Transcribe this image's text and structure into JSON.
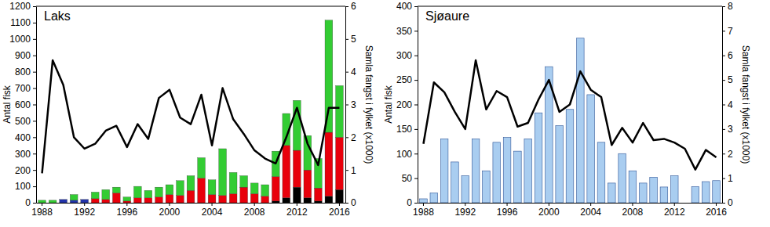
{
  "chart_data": [
    {
      "type": "bar",
      "title": "Laks",
      "y_label": "Antal fisk",
      "y2_label": "Samla fangst i fylket (x1000)",
      "stacked": true,
      "categories": [
        1988,
        null,
        null,
        null,
        1992,
        null,
        null,
        null,
        1996,
        null,
        null,
        null,
        2000,
        null,
        null,
        null,
        2004,
        null,
        null,
        null,
        2008,
        null,
        null,
        null,
        2012,
        null,
        null,
        null,
        2016
      ],
      "series": [
        {
          "type": "bar",
          "color": "#000000",
          "values": [
            null,
            null,
            null,
            null,
            null,
            null,
            null,
            null,
            null,
            null,
            null,
            null,
            null,
            null,
            null,
            null,
            null,
            null,
            null,
            null,
            null,
            null,
            10,
            30,
            95,
            30,
            10,
            40,
            80
          ]
        },
        {
          "type": "bar",
          "color": "#2233aa",
          "values": [
            null,
            null,
            20,
            15,
            20,
            null,
            null,
            null,
            null,
            null,
            null,
            null,
            null,
            null,
            null,
            null,
            null,
            null,
            null,
            null,
            null,
            null,
            null,
            null,
            null,
            null,
            null,
            null,
            null
          ]
        },
        {
          "type": "bar",
          "color": "#e8000b",
          "values": [
            null,
            null,
            null,
            null,
            null,
            25,
            20,
            60,
            10,
            30,
            30,
            35,
            50,
            45,
            75,
            150,
            50,
            45,
            55,
            95,
            55,
            40,
            150,
            320,
            225,
            170,
            80,
            390,
            320
          ]
        },
        {
          "type": "bar",
          "color": "#33cc33",
          "values": [
            15,
            15,
            null,
            35,
            null,
            40,
            60,
            35,
            25,
            70,
            45,
            60,
            60,
            90,
            90,
            125,
            90,
            285,
            130,
            70,
            65,
            70,
            155,
            195,
            305,
            210,
            180,
            685,
            315
          ]
        },
        {
          "type": "line",
          "axis": "y2",
          "color": "#000000",
          "values": [
            0.9,
            4.35,
            3.6,
            2.0,
            1.65,
            1.8,
            2.2,
            2.35,
            1.7,
            2.4,
            1.95,
            3.2,
            3.45,
            2.6,
            2.4,
            3.3,
            1.75,
            3.5,
            2.55,
            2.1,
            1.6,
            1.35,
            1.2,
            2.0,
            2.9,
            1.8,
            1.15,
            2.9,
            2.9
          ]
        }
      ],
      "ylim": [
        0,
        1200
      ],
      "yticks": [
        0,
        100,
        200,
        300,
        400,
        500,
        600,
        700,
        800,
        900,
        1000,
        1100,
        1200
      ],
      "y2lim": [
        0,
        6
      ],
      "y2ticks": [
        0,
        1,
        2,
        3,
        4,
        5,
        6
      ]
    },
    {
      "type": "bar",
      "title": "Sjøaure",
      "y_label": "Antal fisk",
      "y2_label": "Samla fangst i fylket (x1000)",
      "categories": [
        1988,
        null,
        null,
        null,
        1992,
        null,
        null,
        null,
        1996,
        null,
        null,
        null,
        2000,
        null,
        null,
        null,
        2004,
        null,
        null,
        null,
        2008,
        null,
        null,
        null,
        2012,
        null,
        null,
        null,
        2016
      ],
      "series": [
        {
          "type": "bar",
          "color": "#a9cdf0",
          "values": [
            8,
            20,
            130,
            83,
            55,
            130,
            65,
            123,
            133,
            105,
            130,
            183,
            277,
            157,
            190,
            335,
            220,
            123,
            40,
            100,
            65,
            40,
            52,
            32,
            55,
            null,
            33,
            43,
            45
          ]
        },
        {
          "type": "line",
          "axis": "y2",
          "color": "#000000",
          "values": [
            2.4,
            4.9,
            4.5,
            3.7,
            3.0,
            5.8,
            3.8,
            4.55,
            4.3,
            3.1,
            3.25,
            4.2,
            5.0,
            3.7,
            4.0,
            5.35,
            4.6,
            4.3,
            2.35,
            3.05,
            2.45,
            3.25,
            2.55,
            2.6,
            2.45,
            2.2,
            1.35,
            2.15,
            1.85
          ]
        }
      ],
      "ylim": [
        0,
        400
      ],
      "yticks": [
        0,
        50,
        100,
        150,
        200,
        250,
        300,
        350,
        400
      ],
      "y2lim": [
        0,
        8
      ],
      "y2ticks": [
        0,
        1,
        2,
        3,
        4,
        5,
        6,
        7,
        8
      ]
    }
  ]
}
